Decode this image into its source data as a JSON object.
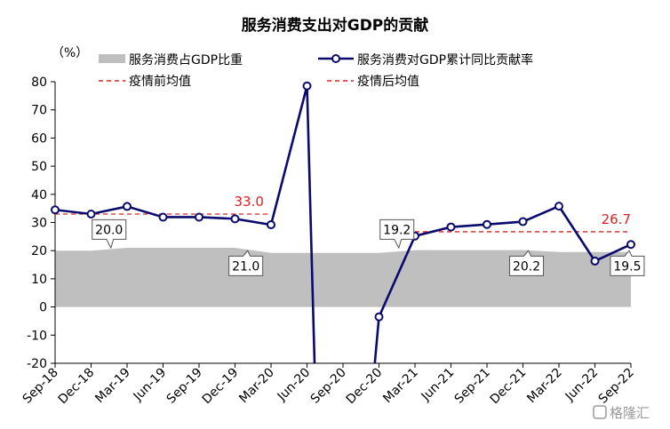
{
  "chart_data": {
    "type": "line",
    "title": "服务消费支出对GDP的贡献",
    "unit_label": "（%）",
    "categories": [
      "Sep-18",
      "Dec-18",
      "Mar-19",
      "Jun-19",
      "Sep-19",
      "Dec-19",
      "Mar-20",
      "Jun-20",
      "Sep-20",
      "Dec-20",
      "Mar-21",
      "Jun-21",
      "Sep-21",
      "Dec-21",
      "Mar-22",
      "Jun-22",
      "Sep-22"
    ],
    "ylim": [
      -20,
      80
    ],
    "yticks": [
      80,
      70,
      60,
      50,
      40,
      30,
      20,
      10,
      0,
      -10,
      -20
    ],
    "grid": false,
    "legend_position": "top",
    "series": [
      {
        "name": "服务消费占GDP比重",
        "kind": "area",
        "color": "#bfbfbf",
        "values": [
          20.0,
          20.0,
          21.0,
          21.0,
          21.0,
          21.0,
          19.2,
          19.2,
          19.2,
          19.2,
          20.2,
          20.2,
          20.2,
          20.2,
          19.5,
          19.5,
          19.5
        ]
      },
      {
        "name": "服务消费对GDP累计同比贡献率",
        "kind": "line",
        "color": "#0a0a6e",
        "values": [
          34.5,
          33.0,
          35.7,
          31.9,
          31.9,
          31.3,
          29.2,
          78.5,
          null,
          -3.5,
          25.2,
          28.4,
          29.3,
          30.3,
          35.8,
          16.3,
          22.2
        ]
      }
    ],
    "reference_lines": [
      {
        "name": "疫情前均值",
        "color": "#e02020",
        "value": 33.0,
        "label": "33.0",
        "from_index": 0,
        "to_index": 6
      },
      {
        "name": "疫情后均值",
        "color": "#e02020",
        "value": 26.7,
        "label": "26.7",
        "from_index": 10,
        "to_index": 16
      }
    ],
    "callouts": [
      {
        "label": "20.0",
        "index": 1.5
      },
      {
        "label": "21.0",
        "index": 5.3
      },
      {
        "label": "19.2",
        "index": 9.5
      },
      {
        "label": "20.2",
        "index": 13.1
      },
      {
        "label": "19.5",
        "index": 15.9
      }
    ]
  },
  "watermark": "格隆汇"
}
